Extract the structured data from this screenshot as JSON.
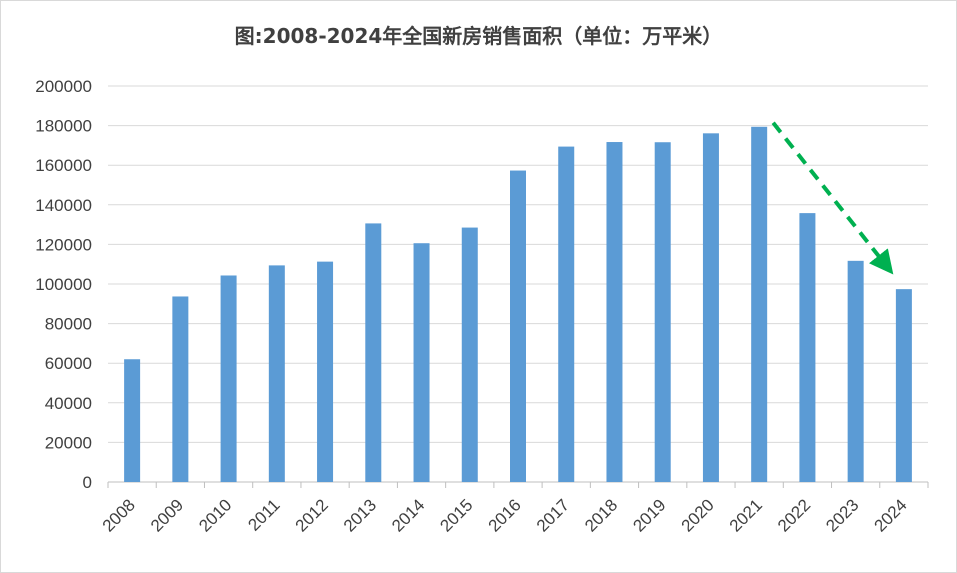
{
  "chart_data": {
    "type": "bar",
    "title": "图:2008-2024年全国新房销售面积（单位：万平米）",
    "xlabel": "",
    "ylabel": "",
    "ylim": [
      0,
      200000
    ],
    "y_ticks": [
      0,
      20000,
      40000,
      60000,
      80000,
      100000,
      120000,
      140000,
      160000,
      180000,
      200000
    ],
    "categories": [
      "2008",
      "2009",
      "2010",
      "2011",
      "2012",
      "2013",
      "2014",
      "2015",
      "2016",
      "2017",
      "2018",
      "2019",
      "2020",
      "2021",
      "2022",
      "2023",
      "2024"
    ],
    "values": [
      62000,
      93700,
      104300,
      109400,
      111300,
      130600,
      120600,
      128500,
      157300,
      169400,
      171700,
      171600,
      176100,
      179400,
      135800,
      111700,
      97400
    ],
    "grid": true,
    "legend": "none",
    "bar_color": "#5b9bd5",
    "grid_color": "#d9d9d9",
    "annotation": {
      "type": "trend-arrow",
      "color": "#00b050",
      "from_category": "2021",
      "to_category": "2024"
    }
  }
}
